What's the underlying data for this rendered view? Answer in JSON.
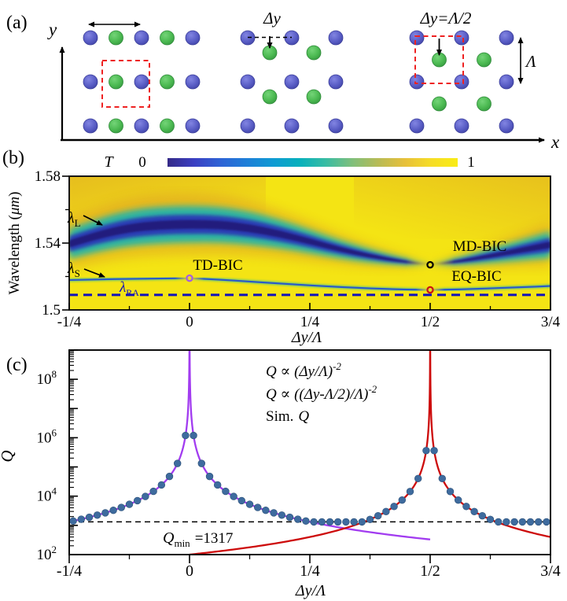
{
  "panel_a": {
    "label": "(a)",
    "x_axis_label": "x",
    "y_axis_label": "y",
    "delta_y_label": "Δy",
    "delta_y_half_label": "Δy=Λ/2",
    "period_label": "Λ",
    "colors": {
      "blue_dot": "#5a5ec6",
      "green_dot": "#4cba52",
      "red_dashed_cell": "#ee2222"
    },
    "dot_radius": 9,
    "lattices": {
      "uniform": {
        "blue_cols": [
          115,
          180,
          245
        ],
        "blue_rows": [
          48,
          104,
          160
        ],
        "green_cols": [
          147.5,
          212.5
        ],
        "green_rows": [
          48,
          104,
          160
        ]
      },
      "shifted": {
        "blue_cols": [
          315,
          371,
          427
        ],
        "blue_rows": [
          48,
          104,
          160
        ],
        "green_cols": [
          343,
          399
        ],
        "green_rows": [
          67,
          123
        ]
      },
      "half_shifted": {
        "blue_cols": [
          530,
          587,
          644
        ],
        "blue_rows": [
          48,
          104,
          160
        ],
        "green_cols": [
          558.5,
          615.5
        ],
        "green_rows": [
          76,
          132
        ]
      }
    }
  },
  "chart_data": [
    {
      "id": "panel_b",
      "type": "heatmap",
      "panel_label": "(b)",
      "colorbar": {
        "title": "T",
        "min_label": "0",
        "max_label": "1",
        "colormap": "parula",
        "stops": [
          "#352a87",
          "#3b3fc2",
          "#2e63d5",
          "#1e7fd8",
          "#0f9bd3",
          "#07b0bc",
          "#38bca3",
          "#7fbf7b",
          "#b8bb55",
          "#e7c03a",
          "#f6dd27",
          "#f9ec15"
        ]
      },
      "transmission_range": [
        0,
        1
      ],
      "x_axis": {
        "label": "Δy/Λ",
        "range": [
          -0.25,
          0.75
        ],
        "ticks": [
          {
            "v": -0.25,
            "label": "-1/4"
          },
          {
            "v": 0,
            "label": "0"
          },
          {
            "v": 0.25,
            "label": "1/4"
          },
          {
            "v": 0.5,
            "label": "1/2"
          },
          {
            "v": 0.75,
            "label": "3/4"
          }
        ],
        "minor_ticks": [
          -0.125,
          0.125,
          0.375,
          0.625
        ]
      },
      "y_axis": {
        "label": "Wavelength (μm)",
        "label_parts": [
          "Wavelength (",
          "μm",
          ")"
        ],
        "range": [
          1.5,
          1.58
        ],
        "ticks": [
          {
            "v": 1.58,
            "label": "1.58"
          },
          {
            "v": 1.54,
            "label": "1.54"
          },
          {
            "v": 1.5,
            "label": "1.5"
          }
        ],
        "minor_ticks": [
          1.56,
          1.52
        ]
      },
      "band_colors": {
        "core": "#241d7d",
        "blue": "#2c3cb4",
        "cyan": "#1cb3ad",
        "orange": "#dd9d25",
        "background": "#f4e414"
      },
      "modes": {
        "lambda_L_band": {
          "label": {
            "base": "λ",
            "sub": "L"
          },
          "points": [
            [
              -0.25,
              1.5395,
              0.0047
            ],
            [
              -0.1875,
              1.545,
              0.0052
            ],
            [
              -0.125,
              1.549,
              0.0056
            ],
            [
              -0.0625,
              1.5508,
              0.0058
            ],
            [
              0,
              1.5513,
              0.0058
            ],
            [
              0.0625,
              1.551,
              0.0056
            ],
            [
              0.125,
              1.549,
              0.0052
            ],
            [
              0.1875,
              1.5455,
              0.0045
            ],
            [
              0.25,
              1.541,
              0.0037
            ],
            [
              0.3125,
              1.5362,
              0.0029
            ],
            [
              0.375,
              1.5323,
              0.0021
            ],
            [
              0.4375,
              1.5292,
              0.0012
            ],
            [
              0.5,
              1.527,
              0.0002
            ],
            [
              0.5625,
              1.5292,
              0.0012
            ],
            [
              0.625,
              1.5323,
              0.0022
            ],
            [
              0.6875,
              1.5357,
              0.0032
            ],
            [
              0.75,
              1.539,
              0.0042
            ]
          ]
        },
        "lambda_S_line": {
          "label": {
            "base": "λ",
            "sub": "S"
          },
          "points": [
            [
              -0.25,
              1.5179
            ],
            [
              -0.1875,
              1.5183
            ],
            [
              -0.125,
              1.5186
            ],
            [
              -0.0625,
              1.5188
            ],
            [
              0,
              1.519
            ],
            [
              0.0625,
              1.5181
            ],
            [
              0.125,
              1.517
            ],
            [
              0.1875,
              1.5158
            ],
            [
              0.25,
              1.5147
            ],
            [
              0.3125,
              1.5137
            ],
            [
              0.375,
              1.5129
            ],
            [
              0.4375,
              1.5123
            ],
            [
              0.5,
              1.512
            ],
            [
              0.5625,
              1.5123
            ],
            [
              0.625,
              1.5129
            ],
            [
              0.6875,
              1.5136
            ],
            [
              0.75,
              1.5143
            ]
          ]
        },
        "rayleigh_anomaly": {
          "label": {
            "base": "λ",
            "sub": "RA"
          },
          "wavelength": 1.509,
          "color": "#1111bb",
          "style": "dashed"
        }
      },
      "bic_markers": [
        {
          "name": "TD-BIC",
          "x": 0,
          "wavelength": 1.519,
          "color": "#a65be4"
        },
        {
          "name": "MD-BIC",
          "x": 0.5,
          "wavelength": 1.527,
          "color": "#000000"
        },
        {
          "name": "EQ-BIC",
          "x": 0.5,
          "wavelength": 1.512,
          "color": "#cc1111"
        }
      ]
    },
    {
      "id": "panel_c",
      "type": "line+scatter",
      "panel_label": "(c)",
      "x_axis": {
        "label": "Δy/Λ",
        "range": [
          -0.25,
          0.75
        ],
        "ticks": [
          {
            "v": -0.25,
            "label": "-1/4"
          },
          {
            "v": 0,
            "label": "0"
          },
          {
            "v": 0.25,
            "label": "1/4"
          },
          {
            "v": 0.5,
            "label": "1/2"
          },
          {
            "v": 0.75,
            "label": "3/4"
          }
        ],
        "minor_ticks": [
          -0.125,
          0.125,
          0.375,
          0.625
        ]
      },
      "y_axis": {
        "label": "Q",
        "scale": "log",
        "range": [
          100,
          1000000000
        ],
        "ticks": [
          {
            "v": 100000000,
            "base": "10",
            "exp": "8"
          },
          {
            "v": 1000000,
            "base": "10",
            "exp": "6"
          },
          {
            "v": 10000,
            "base": "10",
            "exp": "4"
          },
          {
            "v": 100,
            "base": "10",
            "exp": "2"
          }
        ]
      },
      "series": [
        {
          "name": "TD-BIC fit",
          "legend": {
            "main": "Q ∝ (Δy/Λ)",
            "sup": "-2"
          },
          "color": "#a23cf0",
          "model": "Q = C·(Δy/Λ)^-2",
          "coefficient": 82.3,
          "x_draw": [
            -0.25,
            0.5
          ]
        },
        {
          "name": "EQ-BIC fit",
          "legend": {
            "main": "Q ∝ ((Δy-Λ/2)/Λ)",
            "sup": "-2"
          },
          "color": "#cd0b0b",
          "model": "Q = C·((Δy-Λ/2)/Λ)^-2",
          "coefficient": 25,
          "x_draw": [
            0,
            0.75
          ]
        },
        {
          "name": "simulation",
          "legend": {
            "prefix": "Sim.",
            "q": "Q"
          },
          "color": "#3e6b9e",
          "points": [
            [
              -0.2417,
              1409
            ],
            [
              -0.225,
              1626
            ],
            [
              -0.2083,
              1897
            ],
            [
              -0.1917,
              2240
            ],
            [
              -0.175,
              2687
            ],
            [
              -0.1583,
              3284
            ],
            [
              -0.1417,
              4099
            ],
            [
              -0.125,
              5267
            ],
            [
              -0.1083,
              7017
            ],
            [
              -0.0917,
              9787
            ],
            [
              -0.075,
              14631
            ],
            [
              -0.0583,
              24213
            ],
            [
              -0.0417,
              47353
            ],
            [
              -0.025,
              131680
            ],
            [
              -0.0083,
              1194658
            ],
            [
              0.0083,
              1194658
            ],
            [
              0.025,
              131680
            ],
            [
              0.0417,
              47353
            ],
            [
              0.0583,
              24213
            ],
            [
              0.075,
              14631
            ],
            [
              0.0917,
              9787
            ],
            [
              0.1083,
              7017
            ],
            [
              0.125,
              5267
            ],
            [
              0.1417,
              4099
            ],
            [
              0.1583,
              3284
            ],
            [
              0.175,
              2687
            ],
            [
              0.1917,
              2240
            ],
            [
              0.2083,
              1897
            ],
            [
              0.225,
              1626
            ],
            [
              0.2417,
              1409
            ],
            [
              0.2583,
              1317
            ],
            [
              0.275,
              1317
            ],
            [
              0.2917,
              1317
            ],
            [
              0.3083,
              1317
            ],
            [
              0.325,
              1317
            ],
            [
              0.3417,
              1317
            ],
            [
              0.3583,
              1317
            ],
            [
              0.375,
              1600
            ],
            [
              0.3917,
              2131
            ],
            [
              0.4083,
              2973
            ],
            [
              0.425,
              4444
            ],
            [
              0.4417,
              7355
            ],
            [
              0.4583,
              14384
            ],
            [
              0.475,
              40000
            ],
            [
              0.4917,
              362897
            ],
            [
              0.5083,
              362897
            ],
            [
              0.525,
              40000
            ],
            [
              0.5417,
              14384
            ],
            [
              0.5583,
              7355
            ],
            [
              0.575,
              4444
            ],
            [
              0.5917,
              2973
            ],
            [
              0.6083,
              2131
            ],
            [
              0.625,
              1600
            ],
            [
              0.6417,
              1317
            ],
            [
              0.6583,
              1317
            ],
            [
              0.675,
              1317
            ],
            [
              0.6917,
              1317
            ],
            [
              0.7083,
              1317
            ],
            [
              0.725,
              1317
            ],
            [
              0.7417,
              1317
            ]
          ]
        }
      ],
      "q_min": {
        "value": 1317,
        "label": {
          "base": "Q",
          "sub": "min",
          "eq": "=1317"
        }
      }
    }
  ]
}
